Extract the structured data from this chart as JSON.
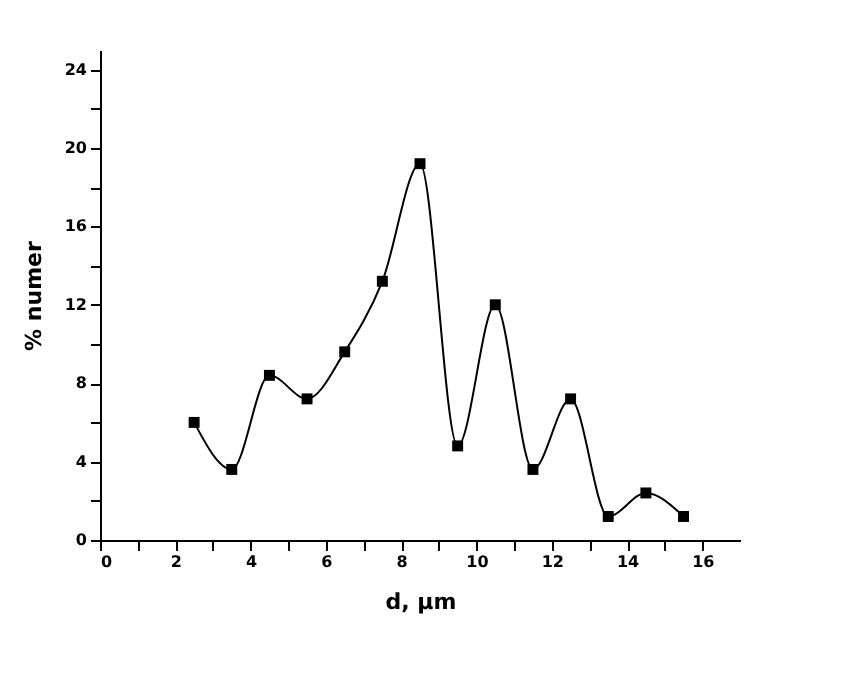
{
  "chart_data": {
    "type": "line",
    "xlabel": "d, μm",
    "ylabel": "% numer",
    "x": [
      2.5,
      3.5,
      4.5,
      5.5,
      6.5,
      7.5,
      8.5,
      9.5,
      10.5,
      11.5,
      12.5,
      13.5,
      14.5,
      15.5
    ],
    "series": [
      {
        "color": "#000000",
        "values": [
          6.0,
          3.6,
          8.4,
          7.2,
          9.6,
          13.2,
          19.2,
          4.8,
          12.0,
          3.6,
          7.2,
          1.2,
          2.4,
          1.2
        ]
      }
    ],
    "xlim": [
      0,
      17
    ],
    "ylim": [
      0,
      25
    ],
    "xticks": [
      0,
      {
        "value": 1,
        "label": null
      },
      2,
      {
        "value": 3,
        "label": null
      },
      4,
      {
        "value": 5,
        "label": null
      },
      6,
      {
        "value": 7,
        "label": null
      },
      8,
      {
        "value": 9,
        "label": null
      },
      10,
      {
        "value": 11,
        "label": null
      },
      12,
      {
        "value": 13,
        "label": null
      },
      14,
      {
        "value": 15,
        "label": null
      },
      16
    ],
    "yticks": [
      0,
      {
        "value": 2,
        "label": null
      },
      4,
      {
        "value": 6,
        "label": null
      },
      8,
      {
        "value": 10,
        "label": null
      },
      12,
      {
        "value": 14,
        "label": null
      },
      16,
      {
        "value": 18,
        "label": null
      },
      20,
      {
        "value": 22,
        "label": null
      },
      24
    ],
    "marker": "square",
    "line_style": "solid",
    "grid": false
  }
}
